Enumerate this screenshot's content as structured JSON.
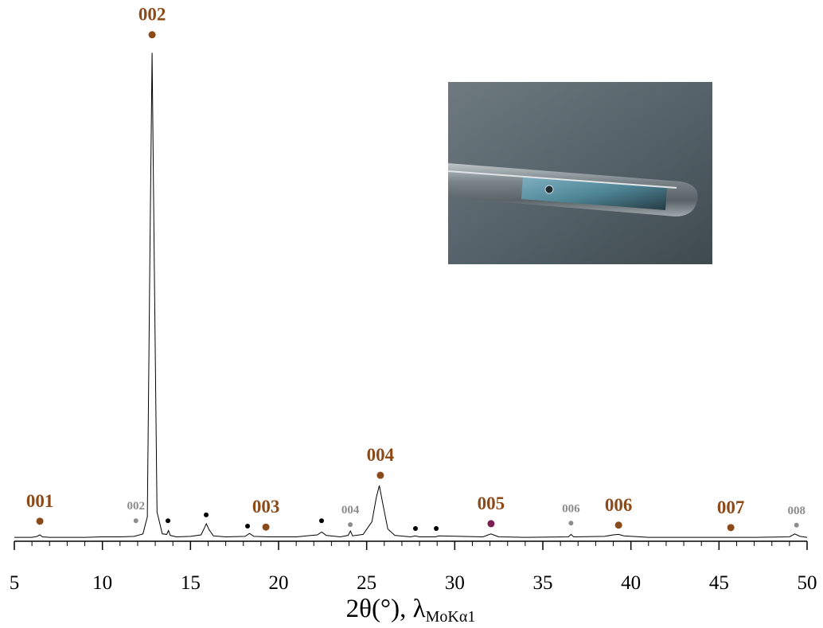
{
  "chart_data": {
    "type": "line",
    "x_label": "2θ(°), λ",
    "x_label_subscript": "MoKα1",
    "xlim": [
      5,
      50
    ],
    "xticks": [
      5,
      10,
      15,
      20,
      25,
      30,
      35,
      40,
      45,
      50
    ],
    "xminorticks": [
      6,
      7,
      8,
      9,
      11,
      12,
      13,
      14,
      16,
      17,
      18,
      19,
      21,
      22,
      23,
      24,
      26,
      27,
      28,
      29,
      31,
      32,
      33,
      34,
      36,
      37,
      38,
      39,
      41,
      42,
      43,
      44,
      46,
      47,
      48,
      49
    ],
    "ylim": [
      0,
      110
    ],
    "series": [
      {
        "color": "#000000",
        "x": [
          5,
          6.0,
          6.3,
          6.45,
          6.6,
          7,
          8,
          9,
          10,
          11,
          11.8,
          12.3,
          12.55,
          12.7,
          12.82,
          12.95,
          13.1,
          13.4,
          13.65,
          13.75,
          13.85,
          14.2,
          15,
          15.6,
          15.8,
          15.9,
          16.05,
          16.3,
          17,
          18.1,
          18.35,
          18.6,
          19.5,
          21,
          22.2,
          22.45,
          22.7,
          23.5,
          23.95,
          24.08,
          24.2,
          24.8,
          25.3,
          25.55,
          25.72,
          25.9,
          26.2,
          26.6,
          27.5,
          27.75,
          28,
          28.9,
          29.1,
          31.6,
          32.05,
          32.5,
          34,
          36.45,
          36.6,
          36.75,
          38.5,
          39.0,
          39.3,
          39.6,
          41,
          44,
          47,
          49,
          49.3,
          49.6,
          50
        ],
        "values": [
          0.8,
          0.8,
          1.0,
          1.3,
          0.9,
          0.8,
          0.8,
          0.8,
          0.9,
          0.9,
          1.0,
          1.5,
          5,
          60,
          100,
          55,
          6,
          1.5,
          1.4,
          2.2,
          1.2,
          0.9,
          1.0,
          1.3,
          2.8,
          3.6,
          2.4,
          1.1,
          0.9,
          1.0,
          1.6,
          1.0,
          0.9,
          0.9,
          1.3,
          1.9,
          1.2,
          0.9,
          1.2,
          2.1,
          1.1,
          1.4,
          4,
          9,
          11.4,
          8,
          2.5,
          1.2,
          0.9,
          1.1,
          0.9,
          0.9,
          1.1,
          0.9,
          1.5,
          0.9,
          0.8,
          0.9,
          1.4,
          0.9,
          1.0,
          1.3,
          1.4,
          1.1,
          0.8,
          0.8,
          0.8,
          0.9,
          1.5,
          1.0,
          0.8
        ]
      }
    ],
    "peak_groups": [
      {
        "color": "#8b4a1a",
        "peaks": [
          {
            "text": "001",
            "x": 6.45,
            "y": 4.1
          },
          {
            "text": "002",
            "x": 12.82,
            "y": 103.7
          },
          {
            "text": "003",
            "x": 19.28,
            "y": 2.9
          },
          {
            "text": "004",
            "x": 25.78,
            "y": 13.5
          },
          {
            "text": "005",
            "x": 32.06,
            "y": 3.6,
            "dot_color": "#7a1f4f"
          },
          {
            "text": "006",
            "x": 39.3,
            "y": 3.3
          },
          {
            "text": "007",
            "x": 45.67,
            "y": 2.8
          }
        ]
      },
      {
        "color": "#8c8c8c",
        "peaks": [
          {
            "text": "002",
            "x": 11.9,
            "y": 4.2
          },
          {
            "text": "004",
            "x": 24.07,
            "y": 3.4
          },
          {
            "text": "006",
            "x": 36.6,
            "y": 3.7
          },
          {
            "text": "008",
            "x": 49.4,
            "y": 3.3
          }
        ]
      },
      {
        "color": "#000000",
        "peaks": [
          {
            "x": 13.72,
            "y": 4.2
          },
          {
            "x": 15.89,
            "y": 5.4
          },
          {
            "x": 18.24,
            "y": 3.1
          },
          {
            "x": 22.44,
            "y": 4.2
          },
          {
            "x": 27.77,
            "y": 2.6
          },
          {
            "x": 28.95,
            "y": 2.6
          }
        ]
      }
    ]
  }
}
